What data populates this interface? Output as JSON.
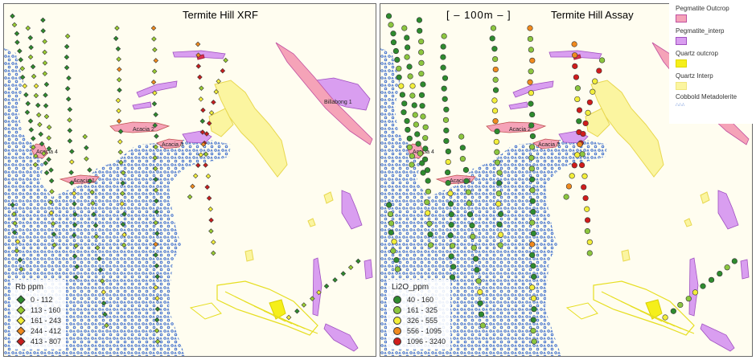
{
  "panels": {
    "left": {
      "title": "Termite Hill XRF",
      "legend_title": "Rb ppm",
      "classes": [
        {
          "label": "0 - 112",
          "color": "#2e8b2e"
        },
        {
          "label": "113 - 160",
          "color": "#9acd32"
        },
        {
          "label": "161 - 243",
          "color": "#f2ee3a"
        },
        {
          "label": "244 - 412",
          "color": "#f08a1e"
        },
        {
          "label": "413 - 807",
          "color": "#c81e1e"
        }
      ]
    },
    "right": {
      "title": "Termite Hill Assay",
      "scale_text": "[ – 100m – ]",
      "legend_title": "Li2O_ppm",
      "classes": [
        {
          "label": "40 - 160",
          "color": "#2e8b2e"
        },
        {
          "label": "161 - 325",
          "color": "#8cc63f"
        },
        {
          "label": "326 - 555",
          "color": "#f2ee3a"
        },
        {
          "label": "556 - 1095",
          "color": "#f08a1e"
        },
        {
          "label": "1096 - 3240",
          "color": "#d01c1c"
        }
      ]
    }
  },
  "map_labels": [
    "Acacia 4",
    "Acacia 1",
    "Acacia 2",
    "Acacia 3",
    "Billabong 1"
  ],
  "geology_legend": [
    {
      "label": "Pegmatite Outcrop",
      "color": "#f5a3b8"
    },
    {
      "label": "Pegmatite_interp",
      "color": "#d99ef0"
    },
    {
      "label": "Quartz  outcrop",
      "color": "#f5ef1a"
    },
    {
      "label": "Quartz Interp",
      "color": "#fbf5a0"
    },
    {
      "label": "Cobbold Metadolerite",
      "color": "#2f63c9"
    }
  ],
  "colors": {
    "metadolerite": "#2f63c9",
    "pegmatite_outcrop": "#f5a3b8",
    "pegmatite_interp": "#d99ef0",
    "quartz_outcrop": "#f5ef1a",
    "quartz_interp": "#fbf5a0",
    "background": "#fffdf0"
  }
}
